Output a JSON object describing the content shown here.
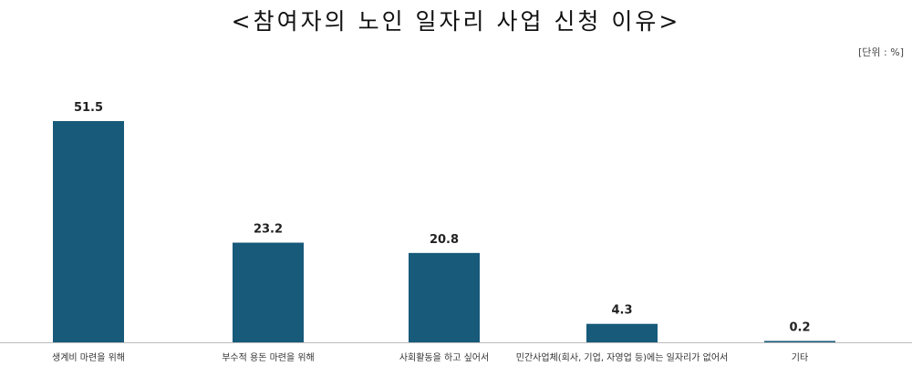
{
  "chart_data": {
    "type": "bar",
    "title": "<참여자의 노인 일자리 사업 신청 이유>",
    "unit": "[단위 : %]",
    "categories": [
      "생계비 마련을 위해",
      "부수적 용돈 마련을 위해",
      "사회활동을 하고 싶어서",
      "민간사업체(회사, 기업, 자영업 등)에는 일자리가 없어서",
      "기타"
    ],
    "values": [
      51.5,
      23.2,
      20.8,
      4.3,
      0.2
    ],
    "value_labels": [
      "51.5",
      "23.2",
      "20.8",
      "4.3",
      "0.2"
    ],
    "ylim": [
      0,
      51.5
    ],
    "xlabel": "",
    "ylabel": "",
    "grid": false,
    "bar_color": "#175A7A",
    "axis_color": "#BBBBBB"
  }
}
